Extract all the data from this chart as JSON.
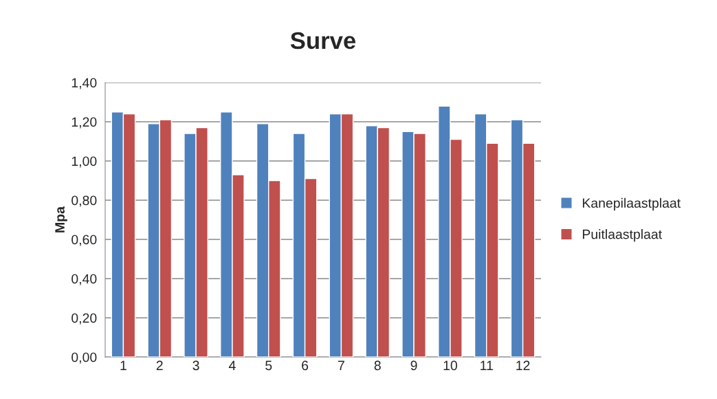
{
  "chart_data": {
    "type": "bar",
    "title": "Surve",
    "ylabel": "Mpa",
    "categories": [
      "1",
      "2",
      "3",
      "4",
      "5",
      "6",
      "7",
      "8",
      "9",
      "10",
      "11",
      "12"
    ],
    "series": [
      {
        "name": "Kanepilaastplaat",
        "color": "#4f81bd",
        "values": [
          1.25,
          1.19,
          1.14,
          1.25,
          1.19,
          1.14,
          1.24,
          1.18,
          1.15,
          1.28,
          1.24,
          1.21
        ]
      },
      {
        "name": "Puitlaastplaat",
        "color": "#c0504d",
        "values": [
          1.24,
          1.21,
          1.17,
          0.93,
          0.9,
          0.91,
          1.24,
          1.17,
          1.14,
          1.11,
          1.09,
          1.09
        ]
      }
    ],
    "ylim": [
      0,
      1.4
    ],
    "yticks": [
      {
        "value": 0,
        "label": "0,00"
      },
      {
        "value": 0.2,
        "label": "0,20"
      },
      {
        "value": 0.4,
        "label": "0,40"
      },
      {
        "value": 0.6,
        "label": "0,60"
      },
      {
        "value": 0.8,
        "label": "0,80"
      },
      {
        "value": 1.0,
        "label": "1,00"
      },
      {
        "value": 1.2,
        "label": "1,20"
      },
      {
        "value": 1.4,
        "label": "1,40"
      }
    ],
    "grid": "y",
    "legend": "right"
  }
}
